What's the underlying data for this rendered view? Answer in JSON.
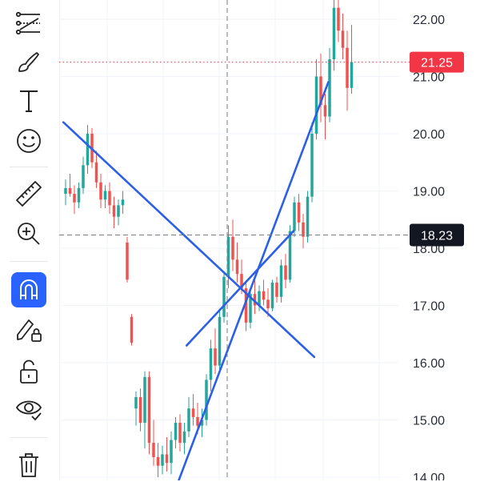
{
  "toolbar": {
    "tools": [
      {
        "name": "trend-line-tool-icon",
        "active": false
      },
      {
        "name": "brush-tool-icon",
        "active": false
      },
      {
        "name": "text-tool-icon",
        "active": false
      },
      {
        "name": "emoji-tool-icon",
        "active": false
      },
      {
        "name": "ruler-tool-icon",
        "active": false
      },
      {
        "name": "zoom-in-tool-icon",
        "active": false
      },
      {
        "name": "magnet-tool-icon",
        "active": true
      },
      {
        "name": "lock-drawings-tool-icon",
        "active": false
      },
      {
        "name": "unlock-tool-icon",
        "active": false
      },
      {
        "name": "hide-drawings-tool-icon",
        "active": false
      },
      {
        "name": "trash-tool-icon",
        "active": false
      }
    ]
  },
  "colors": {
    "up": "#26a69a",
    "down": "#ef5350",
    "trendline": "#2a5fe6",
    "accent": "#2962ff",
    "price_badge": "#f23645",
    "crosshair_badge": "#131722"
  },
  "price_axis": {
    "ticks": [
      "22.00",
      "21.00",
      "20.00",
      "19.00",
      "18.00",
      "17.00",
      "16.00",
      "15.00",
      "14.00"
    ]
  },
  "last_price": {
    "label": "21.25",
    "value": 21.25
  },
  "crosshair": {
    "label": "18.23",
    "value": 18.23
  },
  "chart_data": {
    "type": "candlestick",
    "ylim": [
      13.9,
      22.35
    ],
    "candles": [
      [
        18.95,
        19.2,
        18.75,
        19.05
      ],
      [
        19.05,
        19.3,
        18.9,
        18.95
      ],
      [
        18.95,
        19.1,
        18.6,
        18.8
      ],
      [
        18.8,
        19.15,
        18.7,
        19.05
      ],
      [
        19.05,
        19.6,
        18.95,
        19.45
      ],
      [
        19.45,
        20.15,
        19.3,
        20.0
      ],
      [
        20.0,
        20.1,
        19.4,
        19.5
      ],
      [
        19.5,
        19.7,
        19.05,
        19.15
      ],
      [
        19.15,
        19.3,
        18.7,
        18.85
      ],
      [
        18.85,
        19.1,
        18.7,
        19.0
      ],
      [
        19.0,
        19.15,
        18.6,
        18.75
      ],
      [
        18.75,
        18.9,
        18.35,
        18.55
      ],
      [
        18.55,
        18.85,
        18.4,
        18.75
      ],
      [
        18.75,
        19.0,
        18.6,
        18.85
      ],
      [
        18.1,
        18.2,
        17.4,
        17.45
      ],
      [
        16.8,
        16.85,
        16.3,
        16.35
      ],
      [
        15.2,
        15.5,
        14.9,
        15.4
      ],
      [
        15.4,
        15.55,
        14.8,
        14.95
      ],
      [
        14.95,
        15.85,
        14.5,
        15.75
      ],
      [
        15.75,
        15.85,
        14.4,
        14.6
      ],
      [
        14.6,
        15.0,
        14.2,
        14.35
      ],
      [
        14.35,
        14.6,
        14.0,
        14.2
      ],
      [
        14.2,
        14.55,
        14.05,
        14.4
      ],
      [
        14.4,
        14.7,
        14.1,
        14.25
      ],
      [
        14.25,
        14.8,
        14.05,
        14.65
      ],
      [
        14.65,
        15.05,
        14.5,
        14.95
      ],
      [
        14.95,
        15.1,
        14.45,
        14.6
      ],
      [
        14.6,
        14.95,
        14.4,
        14.8
      ],
      [
        14.8,
        15.4,
        14.7,
        15.2
      ],
      [
        15.2,
        15.45,
        14.9,
        15.05
      ],
      [
        15.05,
        15.3,
        14.75,
        14.9
      ],
      [
        14.9,
        15.2,
        14.7,
        15.0
      ],
      [
        15.0,
        15.8,
        14.9,
        15.7
      ],
      [
        15.7,
        16.4,
        15.5,
        16.25
      ],
      [
        16.25,
        16.6,
        15.8,
        15.95
      ],
      [
        15.95,
        16.9,
        15.85,
        16.8
      ],
      [
        16.8,
        17.6,
        16.7,
        17.5
      ],
      [
        17.5,
        18.4,
        17.3,
        18.2
      ],
      [
        18.2,
        18.5,
        17.6,
        17.8
      ],
      [
        17.8,
        18.1,
        17.4,
        17.55
      ],
      [
        17.55,
        17.8,
        17.2,
        17.3
      ],
      [
        17.3,
        17.4,
        16.55,
        16.7
      ],
      [
        16.7,
        17.3,
        16.6,
        17.2
      ],
      [
        17.2,
        17.5,
        16.85,
        17.0
      ],
      [
        17.0,
        17.35,
        16.9,
        17.25
      ],
      [
        17.25,
        17.45,
        17.0,
        17.1
      ],
      [
        17.1,
        17.3,
        16.8,
        16.95
      ],
      [
        16.95,
        17.45,
        16.9,
        17.4
      ],
      [
        17.4,
        17.5,
        17.05,
        17.15
      ],
      [
        17.15,
        17.8,
        17.05,
        17.7
      ],
      [
        17.7,
        17.9,
        17.3,
        17.45
      ],
      [
        17.45,
        18.4,
        17.4,
        18.3
      ],
      [
        18.3,
        18.9,
        18.2,
        18.8
      ],
      [
        18.8,
        18.95,
        18.3,
        18.45
      ],
      [
        18.45,
        18.6,
        18.0,
        18.2
      ],
      [
        18.2,
        19.0,
        18.1,
        18.9
      ],
      [
        18.9,
        20.2,
        18.8,
        20.0
      ],
      [
        20.0,
        21.3,
        19.9,
        21.0
      ],
      [
        21.0,
        21.4,
        20.2,
        20.5
      ],
      [
        20.5,
        20.7,
        19.9,
        20.3
      ],
      [
        20.3,
        21.5,
        20.2,
        21.3
      ],
      [
        21.3,
        22.4,
        21.1,
        22.2
      ],
      [
        22.2,
        22.35,
        21.6,
        21.8
      ],
      [
        21.8,
        22.1,
        21.3,
        21.5
      ],
      [
        21.5,
        21.8,
        20.4,
        20.8
      ],
      [
        20.8,
        21.9,
        20.7,
        21.25
      ]
    ],
    "trendlines": [
      {
        "from": [
          -0.5,
          20.2
        ],
        "to": [
          56.5,
          16.1
        ]
      },
      {
        "from": [
          25.5,
          13.9
        ],
        "to": [
          59.7,
          20.9
        ]
      },
      {
        "from": [
          27.5,
          16.3
        ],
        "to": [
          51.8,
          18.3
        ]
      }
    ]
  }
}
